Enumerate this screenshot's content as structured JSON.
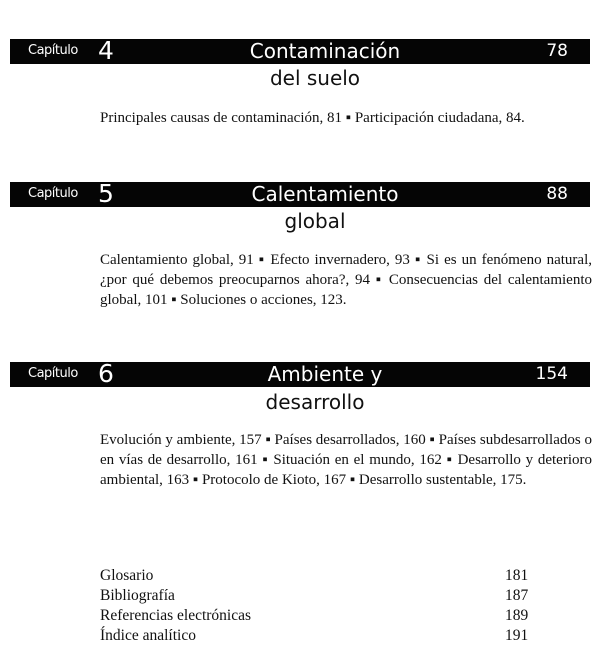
{
  "chapter_label": "Capítulo",
  "chapters": [
    {
      "number": "4",
      "title": "Contaminación",
      "subtitle": "del suelo",
      "page": "78",
      "description": "Principales causas de contaminación, 81 ▪ Participación ciudadana, 84."
    },
    {
      "number": "5",
      "title": "Calentamiento",
      "subtitle": "global",
      "page": "88",
      "description": "Calentamiento global, 91 ▪ Efecto invernadero, 93 ▪ Si es un fenómeno natural, ¿por qué debemos preocuparnos ahora?, 94 ▪ Consecuencias del calentamiento global, 101 ▪ Soluciones o acciones, 123."
    },
    {
      "number": "6",
      "title": "Ambiente y",
      "subtitle": "desarrollo",
      "page": "154",
      "description": "Evolución y ambiente, 157 ▪ Países desarrollados, 160 ▪ Países subdesarrollados o en vías de desarrollo, 161 ▪ Situación en el mundo, 162 ▪ Desarrollo y deterioro ambiental, 163 ▪ Protocolo de Kioto, 167 ▪ Desarrollo sustentable, 175."
    }
  ],
  "back_matter": [
    {
      "label": "Glosario",
      "page": "181"
    },
    {
      "label": "Bibliografía",
      "page": "187"
    },
    {
      "label": "Referencias electrónicas",
      "page": "189"
    },
    {
      "label": "Índice analítico",
      "page": "191"
    }
  ]
}
